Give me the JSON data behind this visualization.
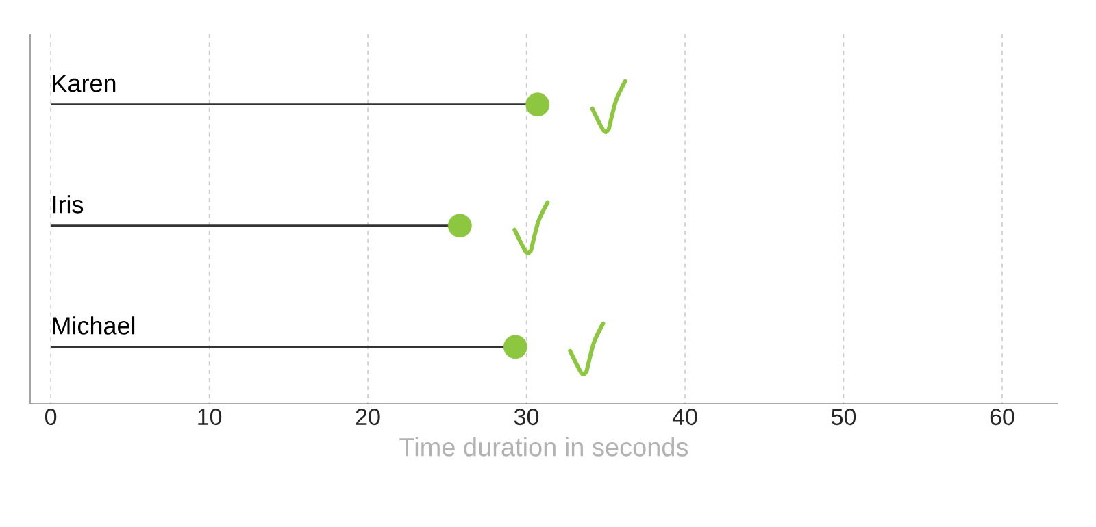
{
  "chart_data": {
    "type": "lollipop",
    "orientation": "horizontal",
    "categories": [
      "Karen",
      "Iris",
      "Michael"
    ],
    "values": [
      30.7,
      25.8,
      29.3
    ],
    "color": "#8dc63f",
    "xlabel": "Time duration in seconds",
    "xlim": [
      -1.3,
      63.5
    ],
    "xticks": [
      0,
      10,
      20,
      30,
      40,
      50,
      60
    ],
    "grid": "x"
  }
}
